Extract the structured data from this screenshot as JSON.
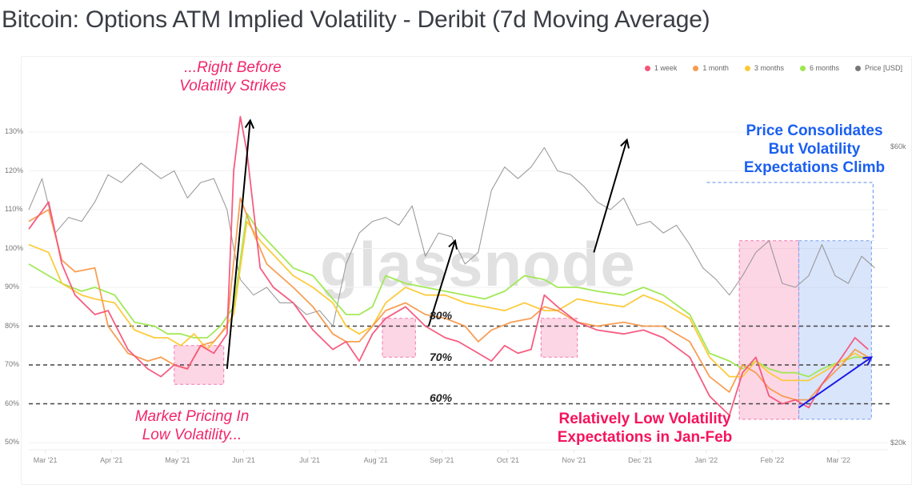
{
  "title": "Bitcoin: Options ATM Implied Volatility - Deribit (7d Moving Average)",
  "watermark": "glassnode",
  "chart_data": {
    "type": "line",
    "title": "Bitcoin: Options ATM Implied Volatility - Deribit (7d Moving Average)",
    "x_ticks": [
      "Mar '21",
      "Apr '21",
      "May '21",
      "Jun '21",
      "Jul '21",
      "Aug '21",
      "Sep '21",
      "Oct '21",
      "Nov '21",
      "Dec '21",
      "Jan '22",
      "Feb '22",
      "Mar '22"
    ],
    "y_ticks": [
      "130%",
      "120%",
      "110%",
      "100%",
      "90%",
      "80%",
      "70%",
      "60%",
      "50%"
    ],
    "y_right_ticks": [
      "$60k",
      "$20k"
    ],
    "ylim": [
      50,
      135
    ],
    "grid": true,
    "legend_position": "top-right",
    "x_range_months": [
      0,
      13
    ],
    "series": [
      {
        "name": "1 week",
        "color": "#f6547a",
        "x": [
          0.0,
          0.3,
          0.5,
          0.7,
          1.0,
          1.2,
          1.5,
          1.8,
          2.0,
          2.2,
          2.4,
          2.6,
          2.8,
          3.0,
          3.1,
          3.2,
          3.3,
          3.5,
          3.7,
          4.0,
          4.3,
          4.6,
          4.8,
          5.0,
          5.2,
          5.4,
          5.7,
          6.0,
          6.3,
          6.5,
          6.8,
          7.0,
          7.2,
          7.4,
          7.6,
          7.8,
          8.0,
          8.3,
          8.6,
          9.0,
          9.3,
          9.6,
          10.0,
          10.3,
          10.6,
          10.8,
          11.0,
          11.2,
          11.4,
          11.6,
          11.8,
          12.0,
          12.3,
          12.5,
          12.7
        ],
        "values": [
          105,
          112,
          96,
          88,
          83,
          84,
          74,
          69,
          67,
          70,
          69,
          75,
          73,
          78,
          120,
          134,
          125,
          95,
          90,
          86,
          79,
          74,
          76,
          71,
          78,
          82,
          85,
          80,
          77,
          76,
          73,
          71,
          75,
          73,
          74,
          88,
          85,
          81,
          79,
          78,
          79,
          77,
          72,
          62,
          57,
          68,
          72,
          62,
          60,
          61,
          59,
          65,
          72,
          77,
          74
        ]
      },
      {
        "name": "1 month",
        "color": "#f89a4c",
        "x": [
          0.0,
          0.3,
          0.5,
          0.7,
          1.0,
          1.2,
          1.5,
          1.8,
          2.0,
          2.2,
          2.4,
          2.6,
          2.8,
          3.0,
          3.2,
          3.4,
          3.6,
          4.0,
          4.3,
          4.6,
          4.8,
          5.0,
          5.2,
          5.4,
          5.7,
          6.0,
          6.3,
          6.6,
          6.8,
          7.0,
          7.3,
          7.6,
          7.8,
          8.0,
          8.3,
          8.6,
          9.0,
          9.3,
          9.6,
          10.0,
          10.3,
          10.6,
          10.8,
          11.0,
          11.2,
          11.4,
          11.6,
          11.8,
          12.0,
          12.3,
          12.5,
          12.7
        ],
        "values": [
          107,
          110,
          97,
          94,
          95,
          80,
          73,
          71,
          72,
          70,
          69,
          75,
          76,
          80,
          113,
          104,
          96,
          90,
          85,
          78,
          76,
          76,
          80,
          84,
          86,
          83,
          82,
          80,
          76,
          79,
          81,
          82,
          85,
          84,
          81,
          80,
          81,
          80,
          80,
          76,
          67,
          63,
          70,
          68,
          64,
          62,
          61,
          61,
          65,
          70,
          74,
          72
        ]
      },
      {
        "name": "3 months",
        "color": "#fcc935",
        "x": [
          0.0,
          0.3,
          0.5,
          0.8,
          1.0,
          1.3,
          1.6,
          1.9,
          2.1,
          2.3,
          2.5,
          2.7,
          2.9,
          3.1,
          3.3,
          3.5,
          4.0,
          4.3,
          4.6,
          4.8,
          5.0,
          5.2,
          5.4,
          5.7,
          6.0,
          6.3,
          6.6,
          6.9,
          7.2,
          7.5,
          7.8,
          8.0,
          8.3,
          8.6,
          9.0,
          9.3,
          9.6,
          10.0,
          10.3,
          10.6,
          10.8,
          11.0,
          11.2,
          11.4,
          11.6,
          11.8,
          12.0,
          12.3,
          12.5,
          12.7
        ],
        "values": [
          101,
          99,
          91,
          88,
          87,
          86,
          79,
          77,
          77,
          75,
          78,
          74,
          78,
          83,
          107,
          102,
          93,
          90,
          86,
          80,
          78,
          80,
          86,
          90,
          88,
          88,
          86,
          85,
          84,
          86,
          84,
          84,
          87,
          86,
          85,
          88,
          86,
          82,
          72,
          67,
          67,
          71,
          68,
          66,
          66,
          66,
          68,
          71,
          73,
          71
        ]
      },
      {
        "name": "6 months",
        "color": "#9de84e",
        "x": [
          0.0,
          0.3,
          0.5,
          0.8,
          1.0,
          1.3,
          1.6,
          1.9,
          2.1,
          2.3,
          2.5,
          2.7,
          2.9,
          3.1,
          3.3,
          3.5,
          4.0,
          4.3,
          4.6,
          4.8,
          5.0,
          5.2,
          5.4,
          5.7,
          6.0,
          6.3,
          6.6,
          6.9,
          7.2,
          7.5,
          7.8,
          8.0,
          8.3,
          8.6,
          9.0,
          9.3,
          9.6,
          10.0,
          10.3,
          10.6,
          10.8,
          11.0,
          11.2,
          11.4,
          11.6,
          11.8,
          12.0,
          12.3,
          12.5,
          12.7
        ],
        "values": [
          96,
          93,
          91,
          89,
          90,
          88,
          81,
          80,
          78,
          78,
          77,
          77,
          80,
          85,
          109,
          104,
          95,
          93,
          87,
          83,
          83,
          85,
          93,
          91,
          90,
          89,
          88,
          87,
          89,
          93,
          92,
          90,
          90,
          89,
          88,
          90,
          88,
          83,
          73,
          71,
          69,
          71,
          69,
          68,
          68,
          67,
          69,
          71,
          72,
          72
        ]
      },
      {
        "name": "Price [USD]",
        "color": "#8c8c8c",
        "x": [
          0.0,
          0.2,
          0.4,
          0.6,
          0.8,
          1.0,
          1.2,
          1.4,
          1.7,
          2.0,
          2.2,
          2.4,
          2.6,
          2.8,
          3.0,
          3.1,
          3.2,
          3.4,
          3.6,
          3.8,
          4.0,
          4.2,
          4.4,
          4.6,
          4.8,
          5.0,
          5.2,
          5.4,
          5.6,
          5.8,
          6.0,
          6.2,
          6.4,
          6.6,
          6.8,
          7.0,
          7.2,
          7.4,
          7.6,
          7.8,
          8.0,
          8.2,
          8.4,
          8.6,
          8.8,
          9.0,
          9.2,
          9.4,
          9.6,
          9.8,
          10.0,
          10.2,
          10.4,
          10.6,
          10.8,
          11.0,
          11.2,
          11.4,
          11.6,
          11.8,
          12.0,
          12.2,
          12.4,
          12.6,
          12.8
        ],
        "values": [
          110,
          118,
          104,
          108,
          107,
          112,
          119,
          117,
          122,
          118,
          120,
          113,
          117,
          118,
          110,
          100,
          92,
          88,
          90,
          86,
          86,
          83,
          84,
          80,
          96,
          104,
          107,
          108,
          106,
          111,
          98,
          104,
          103,
          96,
          99,
          115,
          121,
          118,
          121,
          126,
          120,
          119,
          116,
          112,
          110,
          113,
          106,
          107,
          104,
          106,
          101,
          95,
          92,
          88,
          93,
          99,
          102,
          91,
          90,
          93,
          101,
          93,
          91,
          98,
          95
        ]
      }
    ],
    "reference_lines": [
      {
        "label": "80%",
        "value": 80
      },
      {
        "label": "70%",
        "value": 70
      },
      {
        "label": "60%",
        "value": 60
      }
    ],
    "highlight_regions": [
      {
        "label": "Market Pricing In Low Volatility...",
        "x": [
          2.2,
          2.95
        ],
        "y": [
          65,
          75
        ],
        "color": "pink"
      },
      {
        "label": "",
        "x": [
          5.35,
          5.85
        ],
        "y": [
          72,
          82
        ],
        "color": "pink"
      },
      {
        "label": "",
        "x": [
          7.75,
          8.3
        ],
        "y": [
          72,
          82
        ],
        "color": "pink"
      },
      {
        "label": "Relatively Low Volatility Expectations in Jan-Feb",
        "x": [
          10.75,
          11.65
        ],
        "y": [
          56,
          102
        ],
        "color": "pink"
      },
      {
        "label": "Price Consolidates But Volatility Expectations Climb",
        "x": [
          11.65,
          12.75
        ],
        "y": [
          56,
          102
        ],
        "color": "blue"
      }
    ],
    "arrows": [
      {
        "from": [
          3.0,
          69
        ],
        "to": [
          3.35,
          133
        ],
        "color": "#000000"
      },
      {
        "from": [
          6.05,
          80
        ],
        "to": [
          6.45,
          102
        ],
        "color": "#000000"
      },
      {
        "from": [
          8.55,
          99
        ],
        "to": [
          9.05,
          128
        ],
        "color": "#000000"
      },
      {
        "from": [
          11.65,
          59
        ],
        "to": [
          12.75,
          72
        ],
        "color": "#1a1ae6"
      }
    ]
  },
  "legend": [
    {
      "label": "1 week",
      "color": "#f6547a"
    },
    {
      "label": "1 month",
      "color": "#f89a4c"
    },
    {
      "label": "3 months",
      "color": "#fcc935"
    },
    {
      "label": "6 months",
      "color": "#9de84e"
    },
    {
      "label": "Price [USD]",
      "color": "#8c8c8c"
    }
  ],
  "annotations": {
    "top_line1": "...Right Before",
    "top_line2": "Volatility Strikes",
    "bottom_line1": "Market Pricing In",
    "bottom_line2": "Low Volatility...",
    "janfeb_line1": "Relatively Low Volatility",
    "janfeb_line2": "Expectations in Jan-Feb",
    "blue_line1": "Price Consolidates",
    "blue_line2": "But Volatility",
    "blue_line3": "Expectations Climb",
    "pct80": "80%",
    "pct70": "70%",
    "pct60": "60%"
  }
}
